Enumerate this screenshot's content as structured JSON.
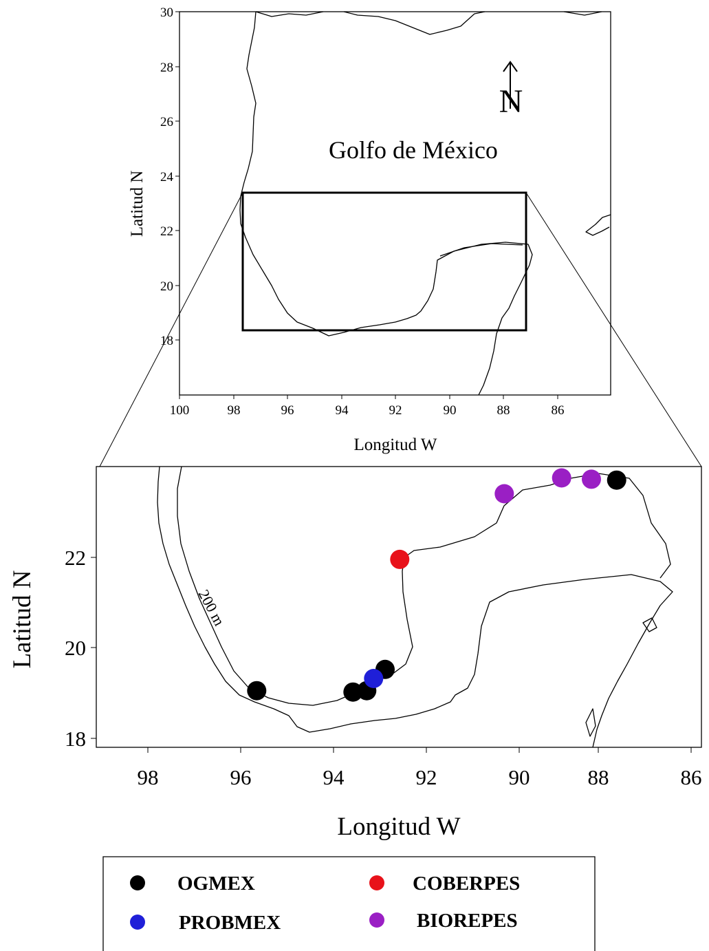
{
  "top_map": {
    "gulf_label": "Golfo de México",
    "north_label": "N",
    "xlabel": "Longitud W",
    "ylabel": "Latitud N",
    "x_ticks": [
      "100",
      "98",
      "96",
      "94",
      "92",
      "90",
      "88",
      "86"
    ],
    "y_ticks": [
      "30",
      "28",
      "26",
      "24",
      "22",
      "20",
      "18"
    ],
    "xlim": [
      100,
      84.3
    ],
    "ylim": [
      16,
      30
    ],
    "inset_box": {
      "lon": [
        97.7,
        87.2
      ],
      "lat": [
        18.4,
        23.4
      ]
    }
  },
  "bottom_map": {
    "xlabel": "Longitud  W",
    "ylabel": "Latitud N",
    "isobath_label": "200 m",
    "x_ticks": [
      "98",
      "96",
      "94",
      "92",
      "90",
      "88",
      "86"
    ],
    "y_ticks": [
      "22",
      "20",
      "18"
    ],
    "xlim": [
      99,
      85.8
    ],
    "ylim": [
      17.8,
      24
    ]
  },
  "stations": [
    {
      "cruise": "OGMEX",
      "lon": 95.5,
      "lat": 19.05,
      "color": "#000000"
    },
    {
      "cruise": "OGMEX",
      "lon": 93.4,
      "lat": 19.02,
      "color": "#000000"
    },
    {
      "cruise": "OGMEX",
      "lon": 93.1,
      "lat": 19.05,
      "color": "#000000"
    },
    {
      "cruise": "OGMEX",
      "lon": 92.7,
      "lat": 19.52,
      "color": "#000000"
    },
    {
      "cruise": "OGMEX",
      "lon": 87.65,
      "lat": 23.7,
      "color": "#000000"
    },
    {
      "cruise": "PROBMEX",
      "lon": 92.95,
      "lat": 19.32,
      "color": "#1f1fd8"
    },
    {
      "cruise": "COBERPES",
      "lon": 92.38,
      "lat": 21.95,
      "color": "#e8121a"
    },
    {
      "cruise": "BIOREPES",
      "lon": 90.1,
      "lat": 23.4,
      "color": "#9a1fc4"
    },
    {
      "cruise": "BIOREPES",
      "lon": 88.85,
      "lat": 23.75,
      "color": "#9a1fc4"
    },
    {
      "cruise": "BIOREPES",
      "lon": 88.2,
      "lat": 23.72,
      "color": "#9a1fc4"
    }
  ],
  "legend": {
    "items": [
      {
        "label": "OGMEX",
        "color": "#000000"
      },
      {
        "label": "COBERPES",
        "color": "#e8121a"
      },
      {
        "label": "PROBMEX",
        "color": "#1f1fd8"
      },
      {
        "label": "BIOREPES",
        "color": "#9a1fc4"
      }
    ]
  }
}
